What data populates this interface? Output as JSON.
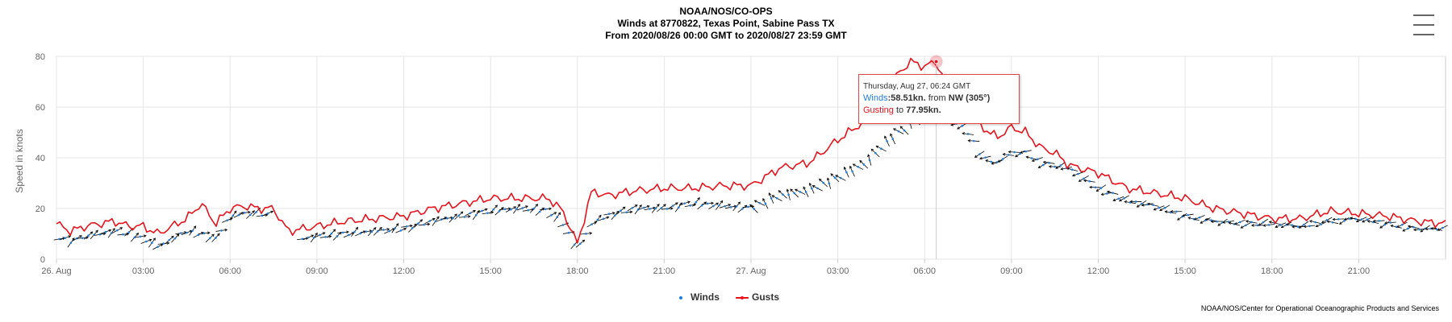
{
  "header": {
    "title": "NOAA/NOS/CO-OPS",
    "subtitle": "Winds at 8770822, Texas Point, Sabine Pass TX",
    "range": "From 2020/08/26 00:00 GMT to 2020/08/27 23:59 GMT"
  },
  "menu": {
    "icon": "hamburger-menu-icon"
  },
  "credit": "NOAA/NOS/Center for Operational Oceanographic Products and Services",
  "legend": {
    "winds": "Winds",
    "gusts": "Gusts"
  },
  "colors": {
    "winds": "#1f7fe0",
    "gusts": "#e8131b",
    "arrows": "#000000",
    "grid": "#e6e6e6"
  },
  "tooltip": {
    "header": "Thursday, Aug 27, 06:24 GMT",
    "winds_label": "Winds",
    "winds_value": ":58.51kn.",
    "from_text": " from ",
    "direction": "NW (305°)",
    "gust_label": "Gusting",
    "to_text": " to ",
    "gust_value": "77.95kn."
  },
  "chart_data": {
    "type": "line",
    "title": "NOAA/NOS/CO-OPS",
    "subtitle": "Winds at 8770822, Texas Point, Sabine Pass TX",
    "ylabel": "Speed in knots",
    "xlabel": "",
    "ylim": [
      0,
      80
    ],
    "yticks": [
      0,
      20,
      40,
      60,
      80
    ],
    "xlim_hours": [
      0,
      48
    ],
    "xticks": [
      {
        "hour": 0,
        "label": "26. Aug"
      },
      {
        "hour": 3,
        "label": "03:00"
      },
      {
        "hour": 6,
        "label": "06:00"
      },
      {
        "hour": 9,
        "label": "09:00"
      },
      {
        "hour": 12,
        "label": "12:00"
      },
      {
        "hour": 15,
        "label": "15:00"
      },
      {
        "hour": 18,
        "label": "18:00"
      },
      {
        "hour": 21,
        "label": "21:00"
      },
      {
        "hour": 24,
        "label": "27. Aug"
      },
      {
        "hour": 27,
        "label": "03:00"
      },
      {
        "hour": 30,
        "label": "06:00"
      },
      {
        "hour": 33,
        "label": "09:00"
      },
      {
        "hour": 36,
        "label": "12:00"
      },
      {
        "hour": 39,
        "label": "15:00"
      },
      {
        "hour": 42,
        "label": "18:00"
      },
      {
        "hour": 45,
        "label": "21:00"
      }
    ],
    "grid": true,
    "legend_position": "bottom-center",
    "series": [
      {
        "name": "Winds",
        "hours": [
          0,
          0.5,
          1,
          1.5,
          2,
          2.5,
          3,
          3.5,
          4,
          4.5,
          5,
          5.5,
          6,
          6.5,
          7,
          7.5,
          8,
          8.5,
          9,
          10,
          11,
          12,
          13,
          14,
          15,
          16,
          17,
          17.5,
          18,
          18.5,
          19,
          20,
          21,
          22,
          23,
          24,
          25,
          26,
          27,
          28,
          28.5,
          29,
          29.5,
          30,
          30.4,
          31,
          31.5,
          32,
          32.5,
          33,
          33.5,
          34,
          34.5,
          35,
          36,
          37,
          38,
          39,
          40,
          41,
          42,
          43,
          44,
          45,
          46,
          47,
          48
        ],
        "values": [
          9,
          7,
          9,
          10,
          11,
          10,
          8,
          5,
          8,
          11,
          10,
          8,
          17,
          18,
          18,
          17,
          null,
          8,
          9,
          10,
          11,
          12,
          15,
          17,
          19,
          20,
          19,
          14,
          4,
          14,
          17,
          20,
          20,
          22,
          21,
          20,
          25,
          27,
          32,
          38,
          44,
          49,
          53,
          58,
          58.51,
          55,
          50,
          40,
          38,
          42,
          42,
          38,
          37,
          36,
          28,
          23,
          21,
          17,
          15,
          14,
          14,
          13,
          15,
          16,
          14,
          12,
          12
        ]
      },
      {
        "name": "Gusts",
        "hours": [
          0,
          0.5,
          1,
          1.5,
          2,
          2.5,
          3,
          3.5,
          4,
          4.5,
          5,
          5.5,
          6,
          6.5,
          7,
          7.5,
          8,
          8.5,
          9,
          10,
          11,
          12,
          13,
          14,
          15,
          16,
          17,
          17.5,
          18,
          18.5,
          19,
          20,
          21,
          22,
          23,
          24,
          25,
          26,
          27,
          28,
          28.5,
          29,
          29.5,
          30,
          30.4,
          31,
          31.5,
          32,
          32.5,
          33,
          33.5,
          34,
          34.5,
          35,
          36,
          37,
          38,
          39,
          40,
          41,
          42,
          43,
          44,
          45,
          46,
          47,
          48
        ],
        "values": [
          14,
          11,
          13,
          14,
          15,
          13,
          13,
          10,
          13,
          16,
          22,
          14,
          20,
          21,
          20,
          20,
          11,
          12,
          13,
          15,
          16,
          17,
          20,
          22,
          24,
          24,
          24,
          19,
          6,
          27,
          25,
          27,
          28,
          28,
          29,
          29,
          36,
          38,
          47,
          55,
          67,
          72,
          78,
          76,
          77.95,
          62,
          58,
          52,
          48,
          52,
          50,
          44,
          42,
          37,
          34,
          28,
          26,
          24,
          20,
          18,
          16,
          16,
          19,
          18,
          17,
          15,
          14
        ]
      }
    ],
    "highlight": {
      "hour": 30.4,
      "wind": 58.51,
      "gust": 77.95,
      "direction_deg": 305
    }
  }
}
